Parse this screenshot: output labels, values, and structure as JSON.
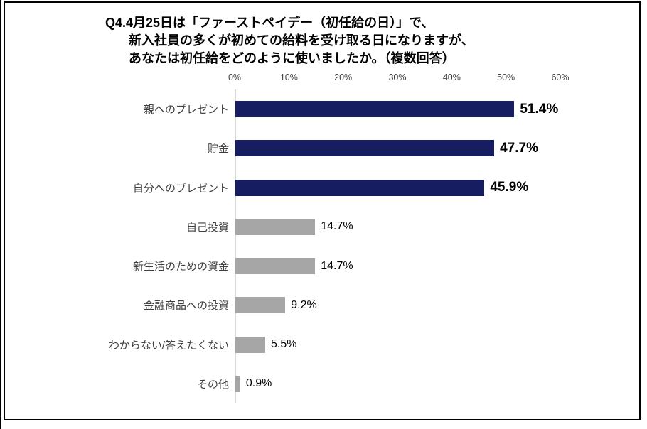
{
  "page": {
    "background_color": "#ffffff",
    "frame_border_color": "#000000"
  },
  "chart_data": {
    "type": "bar",
    "orientation": "horizontal",
    "title": "Q4.4月25日は「ファーストペイデー（初任給の日）」で、新入社員の多くが初めての給料を受け取る日になりますが、あなたは初任給をどのように使いましたか。（複数回答）",
    "title_lines": [
      "Q4.4月25日は「ファーストペイデー（初任給の日）」で、",
      "新入社員の多くが初めての給料を受け取る日になりますが、",
      "あなたは初任給をどのように使いましたか。（複数回答）"
    ],
    "categories": [
      "親へのプレゼント",
      "貯金",
      "自分へのプレゼント",
      "自己投資",
      "新生活のための資金",
      "金融商品への投資",
      "わからない/答えたくない",
      "その他"
    ],
    "values": [
      51.4,
      47.7,
      45.9,
      14.7,
      14.7,
      9.2,
      5.5,
      0.9
    ],
    "value_labels": [
      "51.4%",
      "47.7%",
      "45.9%",
      "14.7%",
      "14.7%",
      "9.2%",
      "5.5%",
      "0.9%"
    ],
    "highlighted": [
      true,
      true,
      true,
      false,
      false,
      false,
      false,
      false
    ],
    "x_ticks": [
      "0%",
      "10%",
      "20%",
      "30%",
      "40%",
      "50%",
      "60%"
    ],
    "xlim": [
      0,
      60
    ],
    "grid": false,
    "legend": false,
    "colors": {
      "highlight_bar": "#161d60",
      "normal_bar": "#a6a6a6",
      "axis_line": "#d9d9d9",
      "value_text": "#000000",
      "category_text": "#404040",
      "tick_text": "#3f3f3f"
    }
  }
}
